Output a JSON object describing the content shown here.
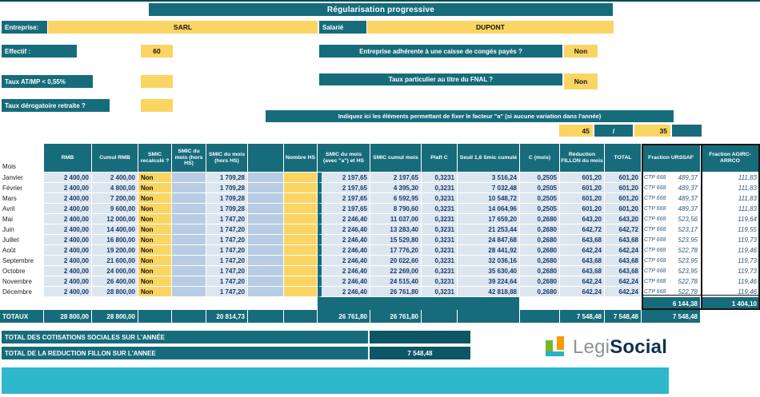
{
  "title": "Régularisation progressive",
  "colors": {
    "teal": "#176C7C",
    "teal_dark": "#0C5666",
    "yellow": "#FBD563",
    "cyan": "#2FB8CB",
    "light_blue": "#DCE6F1",
    "mid_blue": "#B8CCE4",
    "navy_text": "#1B3A63"
  },
  "form": {
    "entreprise_label": "Entreprise:",
    "entreprise_value": "SARL",
    "salarie_label": "Salarié",
    "salarie_value": "DUPONT",
    "effectif_label": "Effectif :",
    "effectif_value": "60",
    "conges_label": "Entreprise adhérente à une caisse de congés payés ?",
    "conges_value": "Non",
    "atmp_label": "Taux AT/MP < 0,55%",
    "atmp_value": "",
    "fnal_label": "Taux particulier au titre du FNAL ?",
    "fnal_value": "Non",
    "derogatoire_label": "Taux dérogatoire retraite ?",
    "derogatoire_value": "",
    "facteur_a_label": "Indiquez ici les éléments permettant de fixer le facteur \"a\" (si aucune variation dans l'année)",
    "facteur_a_num": "45",
    "facteur_a_sep": "/",
    "facteur_a_den": "35"
  },
  "table": {
    "row_header_label": "Mois",
    "headers": [
      "RMB",
      "Cumul RMB",
      "SMIC recalculé ?",
      "SMIC du mois (hors HS)",
      "SMIC du mois (hors HS)",
      "",
      "Nombre HS",
      "SMIC du mois (avec \"a\") et HS",
      "SMIC cumul mois",
      "Plaft C",
      "Seuil 1,6 Smic cumulé",
      "C (mois)",
      "Réduction FILLON du mois",
      "TOTAL",
      "Fraction URSSAF",
      "Fraction AGIRC-ARRCO"
    ],
    "rows": [
      {
        "mois": "Janvier",
        "rmb": "2 400,00",
        "cumul": "2 400,00",
        "recalc": "Non",
        "hors_hs": "1 709,28",
        "avec_a": "2 197,65",
        "cumul_smic": "2 197,65",
        "plaft": "0,3231",
        "seuil": "3 516,24",
        "c_mois": "0,2505",
        "reduction": "601,20",
        "total": "601,20",
        "ctp": "CTP 668",
        "urssaf": "489,37",
        "agirc": "111,83"
      },
      {
        "mois": "Février",
        "rmb": "2 400,00",
        "cumul": "4 800,00",
        "recalc": "Non",
        "hors_hs": "1 709,28",
        "avec_a": "2 197,65",
        "cumul_smic": "4 395,30",
        "plaft": "0,3231",
        "seuil": "7 032,48",
        "c_mois": "0,2505",
        "reduction": "601,20",
        "total": "601,20",
        "ctp": "CTP 668",
        "urssaf": "489,37",
        "agirc": "111,83"
      },
      {
        "mois": "Mars",
        "rmb": "2 400,00",
        "cumul": "7 200,00",
        "recalc": "Non",
        "hors_hs": "1 709,28",
        "avec_a": "2 197,65",
        "cumul_smic": "6 592,95",
        "plaft": "0,3231",
        "seuil": "10 548,72",
        "c_mois": "0,2505",
        "reduction": "601,20",
        "total": "601,20",
        "ctp": "CTP 668",
        "urssaf": "489,37",
        "agirc": "111,83"
      },
      {
        "mois": "Avril",
        "rmb": "2 400,00",
        "cumul": "9 600,00",
        "recalc": "Non",
        "hors_hs": "1 709,28",
        "avec_a": "2 197,65",
        "cumul_smic": "8 790,60",
        "plaft": "0,3231",
        "seuil": "14 064,96",
        "c_mois": "0,2505",
        "reduction": "601,20",
        "total": "601,20",
        "ctp": "CTP 668",
        "urssaf": "489,37",
        "agirc": "111,83"
      },
      {
        "mois": "Mai",
        "rmb": "2 400,00",
        "cumul": "12 000,00",
        "recalc": "Non",
        "hors_hs": "1 747,20",
        "avec_a": "2 246,40",
        "cumul_smic": "11 037,00",
        "plaft": "0,3231",
        "seuil": "17 659,20",
        "c_mois": "0,2680",
        "reduction": "643,20",
        "total": "643,20",
        "ctp": "CTP 668",
        "urssaf": "523,56",
        "agirc": "119,64"
      },
      {
        "mois": "Juin",
        "rmb": "2 400,00",
        "cumul": "14 400,00",
        "recalc": "Non",
        "hors_hs": "1 747,20",
        "avec_a": "2 246,40",
        "cumul_smic": "13 283,40",
        "plaft": "0,3231",
        "seuil": "21 253,44",
        "c_mois": "0,2680",
        "reduction": "642,72",
        "total": "642,72",
        "ctp": "CTP 668",
        "urssaf": "523,17",
        "agirc": "119,55"
      },
      {
        "mois": "Juillet",
        "rmb": "2 400,00",
        "cumul": "16 800,00",
        "recalc": "Non",
        "hors_hs": "1 747,20",
        "avec_a": "2 246,40",
        "cumul_smic": "15 529,80",
        "plaft": "0,3231",
        "seuil": "24 847,68",
        "c_mois": "0,2680",
        "reduction": "643,68",
        "total": "643,68",
        "ctp": "CTP 668",
        "urssaf": "523,95",
        "agirc": "119,73"
      },
      {
        "mois": "Août",
        "rmb": "2 400,00",
        "cumul": "19 200,00",
        "recalc": "Non",
        "hors_hs": "1 747,20",
        "avec_a": "2 246,40",
        "cumul_smic": "17 776,20",
        "plaft": "0,3231",
        "seuil": "28 441,92",
        "c_mois": "0,2680",
        "reduction": "642,24",
        "total": "642,24",
        "ctp": "CTP 668",
        "urssaf": "522,78",
        "agirc": "119,46"
      },
      {
        "mois": "Septembre",
        "rmb": "2 400,00",
        "cumul": "21 600,00",
        "recalc": "Non",
        "hors_hs": "1 747,20",
        "avec_a": "2 246,40",
        "cumul_smic": "20 022,60",
        "plaft": "0,3231",
        "seuil": "32 036,16",
        "c_mois": "0,2680",
        "reduction": "643,68",
        "total": "643,68",
        "ctp": "CTP 668",
        "urssaf": "523,95",
        "agirc": "119,73"
      },
      {
        "mois": "Octobre",
        "rmb": "2 400,00",
        "cumul": "24 000,00",
        "recalc": "Non",
        "hors_hs": "1 747,20",
        "avec_a": "2 246,40",
        "cumul_smic": "22 269,00",
        "plaft": "0,3231",
        "seuil": "35 630,40",
        "c_mois": "0,2680",
        "reduction": "643,68",
        "total": "643,68",
        "ctp": "CTP 668",
        "urssaf": "523,95",
        "agirc": "119,73"
      },
      {
        "mois": "Novembre",
        "rmb": "2 400,00",
        "cumul": "26 400,00",
        "recalc": "Non",
        "hors_hs": "1 747,20",
        "avec_a": "2 246,40",
        "cumul_smic": "24 515,40",
        "plaft": "0,3231",
        "seuil": "39 224,64",
        "c_mois": "0,2680",
        "reduction": "642,24",
        "total": "642,24",
        "ctp": "CTP 668",
        "urssaf": "522,78",
        "agirc": "119,46"
      },
      {
        "mois": "Décembre",
        "rmb": "2 400,00",
        "cumul": "28 800,00",
        "recalc": "Non",
        "hors_hs": "1 747,20",
        "avec_a": "2 246,40",
        "cumul_smic": "26 761,80",
        "plaft": "0,3231",
        "seuil": "42 818,88",
        "c_mois": "0,2680",
        "reduction": "642,24",
        "total": "642,24",
        "ctp": "CTP 668",
        "urssaf": "522,78",
        "agirc": "119,46"
      }
    ],
    "fraction_totals": {
      "urssaf": "6 144,38",
      "agirc": "1 404,10"
    },
    "totals": {
      "label": "TOTAUX",
      "rmb": "28 800,00",
      "cumul": "28 800,00",
      "hors_hs": "20 814,73",
      "avec_a": "26 761,80",
      "cumul_smic": "26 761,80",
      "reduction": "7 548,48",
      "total": "7 548,48",
      "urssaf": "7 548,48"
    }
  },
  "footer": {
    "cotisations_label": "TOTAL DES COTISATIONS SOCIALES SUR L'ANNÉE",
    "cotisations_value": "",
    "fillon_label": "TOTAL DE LA REDUCTION FILLON SUR L'ANNEE",
    "fillon_value": "7 548,48",
    "logo_text_1": "Legi",
    "logo_text_2": "Social"
  }
}
